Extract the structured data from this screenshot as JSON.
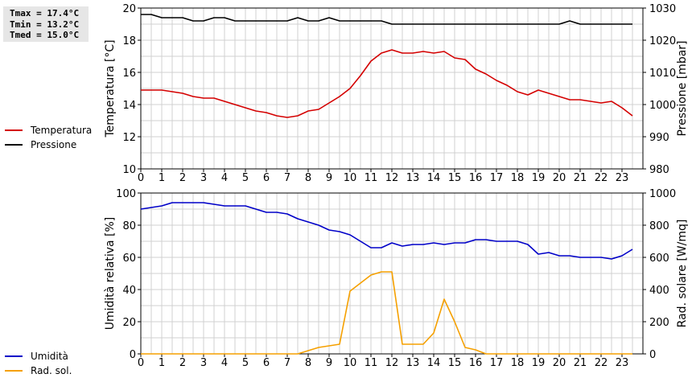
{
  "stats": {
    "tmax": "Tmax = 17.4°C",
    "tmin": "Tmin = 13.2°C",
    "tmed": "Tmed = 15.0°C"
  },
  "colors": {
    "temperatura": "#d40000",
    "pressione": "#000000",
    "umidita": "#0000c8",
    "radsol": "#f5a000",
    "grid": "#d0d0d0"
  },
  "legend_top": [
    {
      "label": "Temperatura",
      "color": "#d40000"
    },
    {
      "label": "Pressione",
      "color": "#000000"
    }
  ],
  "legend_bottom": [
    {
      "label": "Umidità",
      "color": "#0000c8"
    },
    {
      "label": "Rad. sol.",
      "color": "#f5a000"
    }
  ],
  "chart_data": [
    {
      "type": "line",
      "xlim": [
        0,
        24
      ],
      "xticks": [
        "0",
        "1",
        "2",
        "3",
        "4",
        "5",
        "6",
        "7",
        "8",
        "9",
        "10",
        "11",
        "12",
        "13",
        "14",
        "15",
        "16",
        "17",
        "18",
        "19",
        "20",
        "21",
        "22",
        "23"
      ],
      "ylabel": "Temperatura [°C]",
      "ylim": [
        10,
        20
      ],
      "yticks": [
        "10",
        "12",
        "14",
        "16",
        "18",
        "20"
      ],
      "y2label": "Pressione [mbar]",
      "y2lim": [
        980,
        1030
      ],
      "y2ticks": [
        "980",
        "990",
        "1000",
        "1010",
        "1020",
        "1030"
      ],
      "grid": true,
      "series": [
        {
          "name": "Temperatura",
          "axis": "left",
          "color": "#d40000",
          "x": [
            0,
            0.5,
            1,
            1.5,
            2,
            2.5,
            3,
            3.5,
            4,
            4.5,
            5,
            5.5,
            6,
            6.5,
            7,
            7.5,
            8,
            8.5,
            9,
            9.5,
            10,
            10.5,
            11,
            11.5,
            12,
            12.5,
            13,
            13.5,
            14,
            14.5,
            15,
            15.5,
            16,
            16.5,
            17,
            17.5,
            18,
            18.5,
            19,
            19.5,
            20,
            20.5,
            21,
            21.5,
            22,
            22.5,
            23,
            23.5
          ],
          "y": [
            14.9,
            14.9,
            14.9,
            14.8,
            14.7,
            14.5,
            14.4,
            14.4,
            14.2,
            14.0,
            13.8,
            13.6,
            13.5,
            13.3,
            13.2,
            13.3,
            13.6,
            13.7,
            14.1,
            14.5,
            15.0,
            15.8,
            16.7,
            17.2,
            17.4,
            17.2,
            17.2,
            17.3,
            17.2,
            17.3,
            16.9,
            16.8,
            16.2,
            15.9,
            15.5,
            15.2,
            14.8,
            14.6,
            14.9,
            14.7,
            14.5,
            14.3,
            14.3,
            14.2,
            14.1,
            14.2,
            13.8,
            13.3
          ]
        },
        {
          "name": "Pressione",
          "axis": "right",
          "color": "#000000",
          "x": [
            0,
            0.5,
            1,
            1.5,
            2,
            2.5,
            3,
            3.5,
            4,
            4.5,
            5,
            5.5,
            6,
            6.5,
            7,
            7.5,
            8,
            8.5,
            9,
            9.5,
            10,
            10.5,
            11,
            11.5,
            12,
            12.5,
            13,
            13.5,
            14,
            14.5,
            15,
            15.5,
            16,
            16.5,
            17,
            17.5,
            18,
            18.5,
            19,
            19.5,
            20,
            20.5,
            21,
            21.5,
            22,
            22.5,
            23,
            23.5
          ],
          "y": [
            1028,
            1028,
            1027,
            1027,
            1027,
            1026,
            1026,
            1027,
            1027,
            1026,
            1026,
            1026,
            1026,
            1026,
            1026,
            1027,
            1026,
            1026,
            1027,
            1026,
            1026,
            1026,
            1026,
            1026,
            1025,
            1025,
            1025,
            1025,
            1025,
            1025,
            1025,
            1025,
            1025,
            1025,
            1025,
            1025,
            1025,
            1025,
            1025,
            1025,
            1025,
            1026,
            1025,
            1025,
            1025,
            1025,
            1025,
            1025
          ]
        }
      ]
    },
    {
      "type": "line",
      "xlim": [
        0,
        24
      ],
      "xticks": [
        "0",
        "1",
        "2",
        "3",
        "4",
        "5",
        "6",
        "7",
        "8",
        "9",
        "10",
        "11",
        "12",
        "13",
        "14",
        "15",
        "16",
        "17",
        "18",
        "19",
        "20",
        "21",
        "22",
        "23"
      ],
      "ylabel": "Umidità relativa [%]",
      "ylim": [
        0,
        100
      ],
      "yticks": [
        "0",
        "20",
        "40",
        "60",
        "80",
        "100"
      ],
      "y2label": "Rad. solare [W/mq]",
      "y2lim": [
        0,
        1000
      ],
      "y2ticks": [
        "0",
        "200",
        "400",
        "600",
        "800",
        "1000"
      ],
      "grid": true,
      "series": [
        {
          "name": "Umidità",
          "axis": "left",
          "color": "#0000c8",
          "x": [
            0,
            0.5,
            1,
            1.5,
            2,
            2.5,
            3,
            3.5,
            4,
            4.5,
            5,
            5.5,
            6,
            6.5,
            7,
            7.5,
            8,
            8.5,
            9,
            9.5,
            10,
            10.5,
            11,
            11.5,
            12,
            12.5,
            13,
            13.5,
            14,
            14.5,
            15,
            15.5,
            16,
            16.5,
            17,
            17.5,
            18,
            18.5,
            19,
            19.5,
            20,
            20.5,
            21,
            21.5,
            22,
            22.5,
            23,
            23.5
          ],
          "y": [
            90,
            91,
            92,
            94,
            94,
            94,
            94,
            93,
            92,
            92,
            92,
            90,
            88,
            88,
            87,
            84,
            82,
            80,
            77,
            76,
            74,
            70,
            66,
            66,
            69,
            67,
            68,
            68,
            69,
            68,
            69,
            69,
            71,
            71,
            70,
            70,
            70,
            68,
            62,
            63,
            61,
            61,
            60,
            60,
            60,
            59,
            61,
            65
          ]
        },
        {
          "name": "Rad. sol.",
          "axis": "right",
          "color": "#f5a000",
          "x": [
            0,
            0.5,
            1,
            1.5,
            2,
            2.5,
            3,
            3.5,
            4,
            4.5,
            5,
            5.5,
            6,
            6.5,
            7,
            7.5,
            8,
            8.5,
            9,
            9.5,
            10,
            10.5,
            11,
            11.5,
            12,
            12.5,
            13,
            13.5,
            14,
            14.5,
            15,
            15.5,
            16,
            16.5,
            17,
            17.5,
            18,
            18.5,
            19,
            19.5,
            20,
            20.5,
            21,
            21.5,
            22,
            22.5,
            23,
            23.5
          ],
          "y": [
            0,
            0,
            0,
            0,
            0,
            0,
            0,
            0,
            0,
            0,
            0,
            0,
            0,
            0,
            0,
            0,
            20,
            40,
            50,
            60,
            390,
            440,
            490,
            510,
            510,
            60,
            60,
            60,
            130,
            340,
            200,
            40,
            25,
            0,
            0,
            0,
            0,
            0,
            0,
            0,
            0,
            0,
            0,
            0,
            0,
            0,
            0,
            0
          ]
        }
      ]
    }
  ]
}
